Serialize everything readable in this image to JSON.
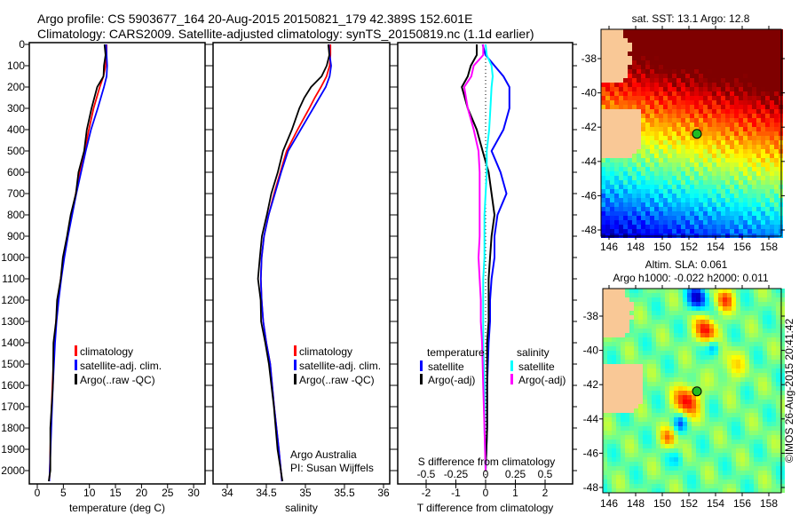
{
  "title_line1": "Argo profile: CS 5903677_164 20-Aug-2015 20150821_179 42.389S 152.601E",
  "title_line2": "Climatology: CARS2009. Satellite-adjusted climatology: synTS_20150819.nc (1.1d earlier)",
  "colors": {
    "climatology": "#ff0000",
    "satellite": "#0000ff",
    "argo": "#000000",
    "sal_sat": "#00ffff",
    "sal_argo": "#ff00ff",
    "land": "#f9c896"
  },
  "chart_data": [
    {
      "type": "line",
      "name": "temperature",
      "xlabel": "temperature (deg C)",
      "ylabel": "",
      "xlim": [
        -1.5,
        32.2
      ],
      "ylim": [
        2060,
        0
      ],
      "xticks": [
        "0",
        "5",
        "10",
        "15",
        "20",
        "25",
        "30"
      ],
      "yticks": [
        "0",
        "100",
        "200",
        "300",
        "400",
        "500",
        "600",
        "700",
        "800",
        "900",
        "1000",
        "1100",
        "1200",
        "1300",
        "1400",
        "1500",
        "1600",
        "1700",
        "1800",
        "1900",
        "2000"
      ],
      "depth": [
        0,
        50,
        100,
        150,
        200,
        300,
        400,
        500,
        600,
        700,
        800,
        900,
        1000,
        1100,
        1200,
        1300,
        1400,
        1600,
        1800,
        2000,
        2050
      ],
      "series": [
        {
          "name": "climatology",
          "values": [
            13.3,
            13.3,
            13.1,
            12.7,
            12.0,
            10.8,
            9.9,
            9.1,
            8.2,
            7.4,
            6.6,
            5.8,
            5.1,
            4.5,
            4.0,
            3.6,
            3.3,
            2.9,
            2.6,
            2.4,
            2.3
          ]
        },
        {
          "name": "satellite-adj. clim.",
          "values": [
            13.2,
            13.3,
            13.4,
            13.3,
            12.8,
            11.6,
            10.3,
            9.3,
            8.4,
            7.5,
            6.7,
            5.9,
            5.2,
            4.6,
            4.1,
            3.7,
            3.4,
            3.0,
            2.7,
            2.4,
            2.3
          ]
        },
        {
          "name": "Argo(..raw -QC)",
          "values": [
            13.0,
            13.0,
            12.9,
            12.6,
            11.6,
            10.3,
            9.6,
            8.9,
            8.0,
            7.3,
            6.5,
            5.6,
            5.0,
            4.4,
            3.9,
            3.5,
            3.2,
            2.9,
            2.6,
            2.4,
            2.3
          ]
        }
      ],
      "legend": [
        "climatology",
        "satellite-adj. clim.",
        "Argo(..raw -QC)"
      ]
    },
    {
      "type": "line",
      "name": "salinity",
      "xlabel": "salinity",
      "xlim": [
        33.8,
        36.07
      ],
      "ylim": [
        2060,
        0
      ],
      "xticks": [
        "34",
        "34.5",
        "35",
        "35.5",
        "36"
      ],
      "depth": [
        0,
        50,
        100,
        150,
        200,
        250,
        300,
        400,
        500,
        600,
        700,
        800,
        900,
        1000,
        1100,
        1200,
        1300,
        1400,
        1500,
        1700,
        1900,
        2050
      ],
      "series": [
        {
          "name": "climatology",
          "values": [
            35.32,
            35.32,
            35.31,
            35.27,
            35.2,
            35.12,
            35.05,
            34.9,
            34.76,
            34.68,
            34.6,
            34.53,
            34.47,
            34.44,
            34.43,
            34.44,
            34.46,
            34.5,
            34.55,
            34.6,
            34.66,
            34.7
          ]
        },
        {
          "name": "satellite-adj. clim.",
          "values": [
            35.3,
            35.31,
            35.33,
            35.31,
            35.26,
            35.18,
            35.1,
            34.94,
            34.78,
            34.69,
            34.61,
            34.53,
            34.47,
            34.44,
            34.43,
            34.44,
            34.46,
            34.5,
            34.55,
            34.6,
            34.66,
            34.7
          ]
        },
        {
          "name": "Argo(..raw -QC)",
          "values": [
            35.3,
            35.3,
            35.28,
            35.2,
            35.08,
            34.98,
            34.93,
            34.82,
            34.72,
            34.64,
            34.57,
            34.5,
            34.45,
            34.41,
            34.4,
            34.42,
            34.44,
            34.48,
            34.54,
            34.59,
            34.65,
            34.7
          ]
        }
      ],
      "legend": [
        "climatology",
        "satellite-adj. clim.",
        "Argo(..raw -QC)"
      ],
      "annotation": [
        "Argo Australia",
        "PI: Susan Wijffels"
      ]
    },
    {
      "type": "line",
      "name": "difference",
      "xlabel": "T difference from climatology",
      "x2label": "S difference from climatology",
      "xlim": [
        -2.95,
        2.95
      ],
      "ylim": [
        2060,
        0
      ],
      "xticks": [
        "-2",
        "-1",
        "0",
        "1",
        "2"
      ],
      "x2ticks": [
        "-0.5",
        "-0.25",
        "0",
        "0.25",
        "0.5"
      ],
      "depth": [
        0,
        50,
        100,
        150,
        200,
        300,
        400,
        500,
        600,
        700,
        800,
        900,
        1000,
        1100,
        1200,
        1300,
        1400,
        1600,
        1800,
        2000
      ],
      "series": [
        {
          "name": "temperature satellite",
          "values": [
            -0.1,
            0.0,
            0.3,
            0.6,
            0.8,
            0.8,
            0.6,
            0.2,
            0.5,
            0.7,
            0.4,
            0.3,
            0.3,
            0.2,
            0.15,
            0.15,
            0.1,
            0.05,
            0.05,
            0.0
          ]
        },
        {
          "name": "temperature Argo(-adj)",
          "values": [
            -0.3,
            -0.3,
            -0.5,
            -0.6,
            -0.8,
            -0.6,
            -0.3,
            -0.1,
            0.1,
            0.2,
            0.3,
            0.2,
            0.15,
            0.1,
            0.1,
            0.1,
            0.05,
            0.05,
            0.05,
            0.0
          ]
        },
        {
          "name": "salinity satellite",
          "values": [
            0.0,
            0.01,
            0.05,
            0.06,
            0.05,
            0.04,
            0.03,
            0.01,
            0.01,
            0.0,
            -0.01,
            -0.01,
            -0.01,
            -0.02,
            -0.02,
            -0.02,
            -0.02,
            -0.01,
            -0.01,
            0.0
          ]
        },
        {
          "name": "salinity Argo(-adj)",
          "values": [
            -0.02,
            -0.02,
            -0.1,
            -0.12,
            -0.18,
            -0.15,
            -0.1,
            -0.06,
            -0.05,
            -0.05,
            -0.05,
            -0.05,
            -0.06,
            -0.05,
            -0.04,
            -0.04,
            -0.03,
            -0.02,
            -0.01,
            0.0
          ]
        }
      ],
      "legend_t_title": "temperature",
      "legend_s_title": "salinity",
      "legend": [
        "satellite",
        "Argo(-adj)",
        "satellite",
        "Argo(-adj)"
      ]
    },
    {
      "type": "heatmap",
      "name": "sst-map",
      "title": "sat. SST: 13.1 Argo: 12.8",
      "xticks": [
        "146",
        "148",
        "150",
        "152",
        "154",
        "156",
        "158"
      ],
      "yticks": [
        "-38",
        "-40",
        "-42",
        "-44",
        "-46",
        "-48"
      ],
      "float_lon": 152.601,
      "float_lat": -42.389
    },
    {
      "type": "heatmap",
      "name": "sla-map",
      "title1": "Altim. SLA: 0.061",
      "title2": "Argo h1000: -0.022 h2000: 0.011",
      "xticks": [
        "146",
        "148",
        "150",
        "152",
        "154",
        "156",
        "158"
      ],
      "yticks": [
        "-38",
        "-40",
        "-42",
        "-44",
        "-46",
        "-48"
      ],
      "float_lon": 152.601,
      "float_lat": -42.389
    }
  ],
  "credit": "©IMOS 26-Aug-2015 20:41:42"
}
